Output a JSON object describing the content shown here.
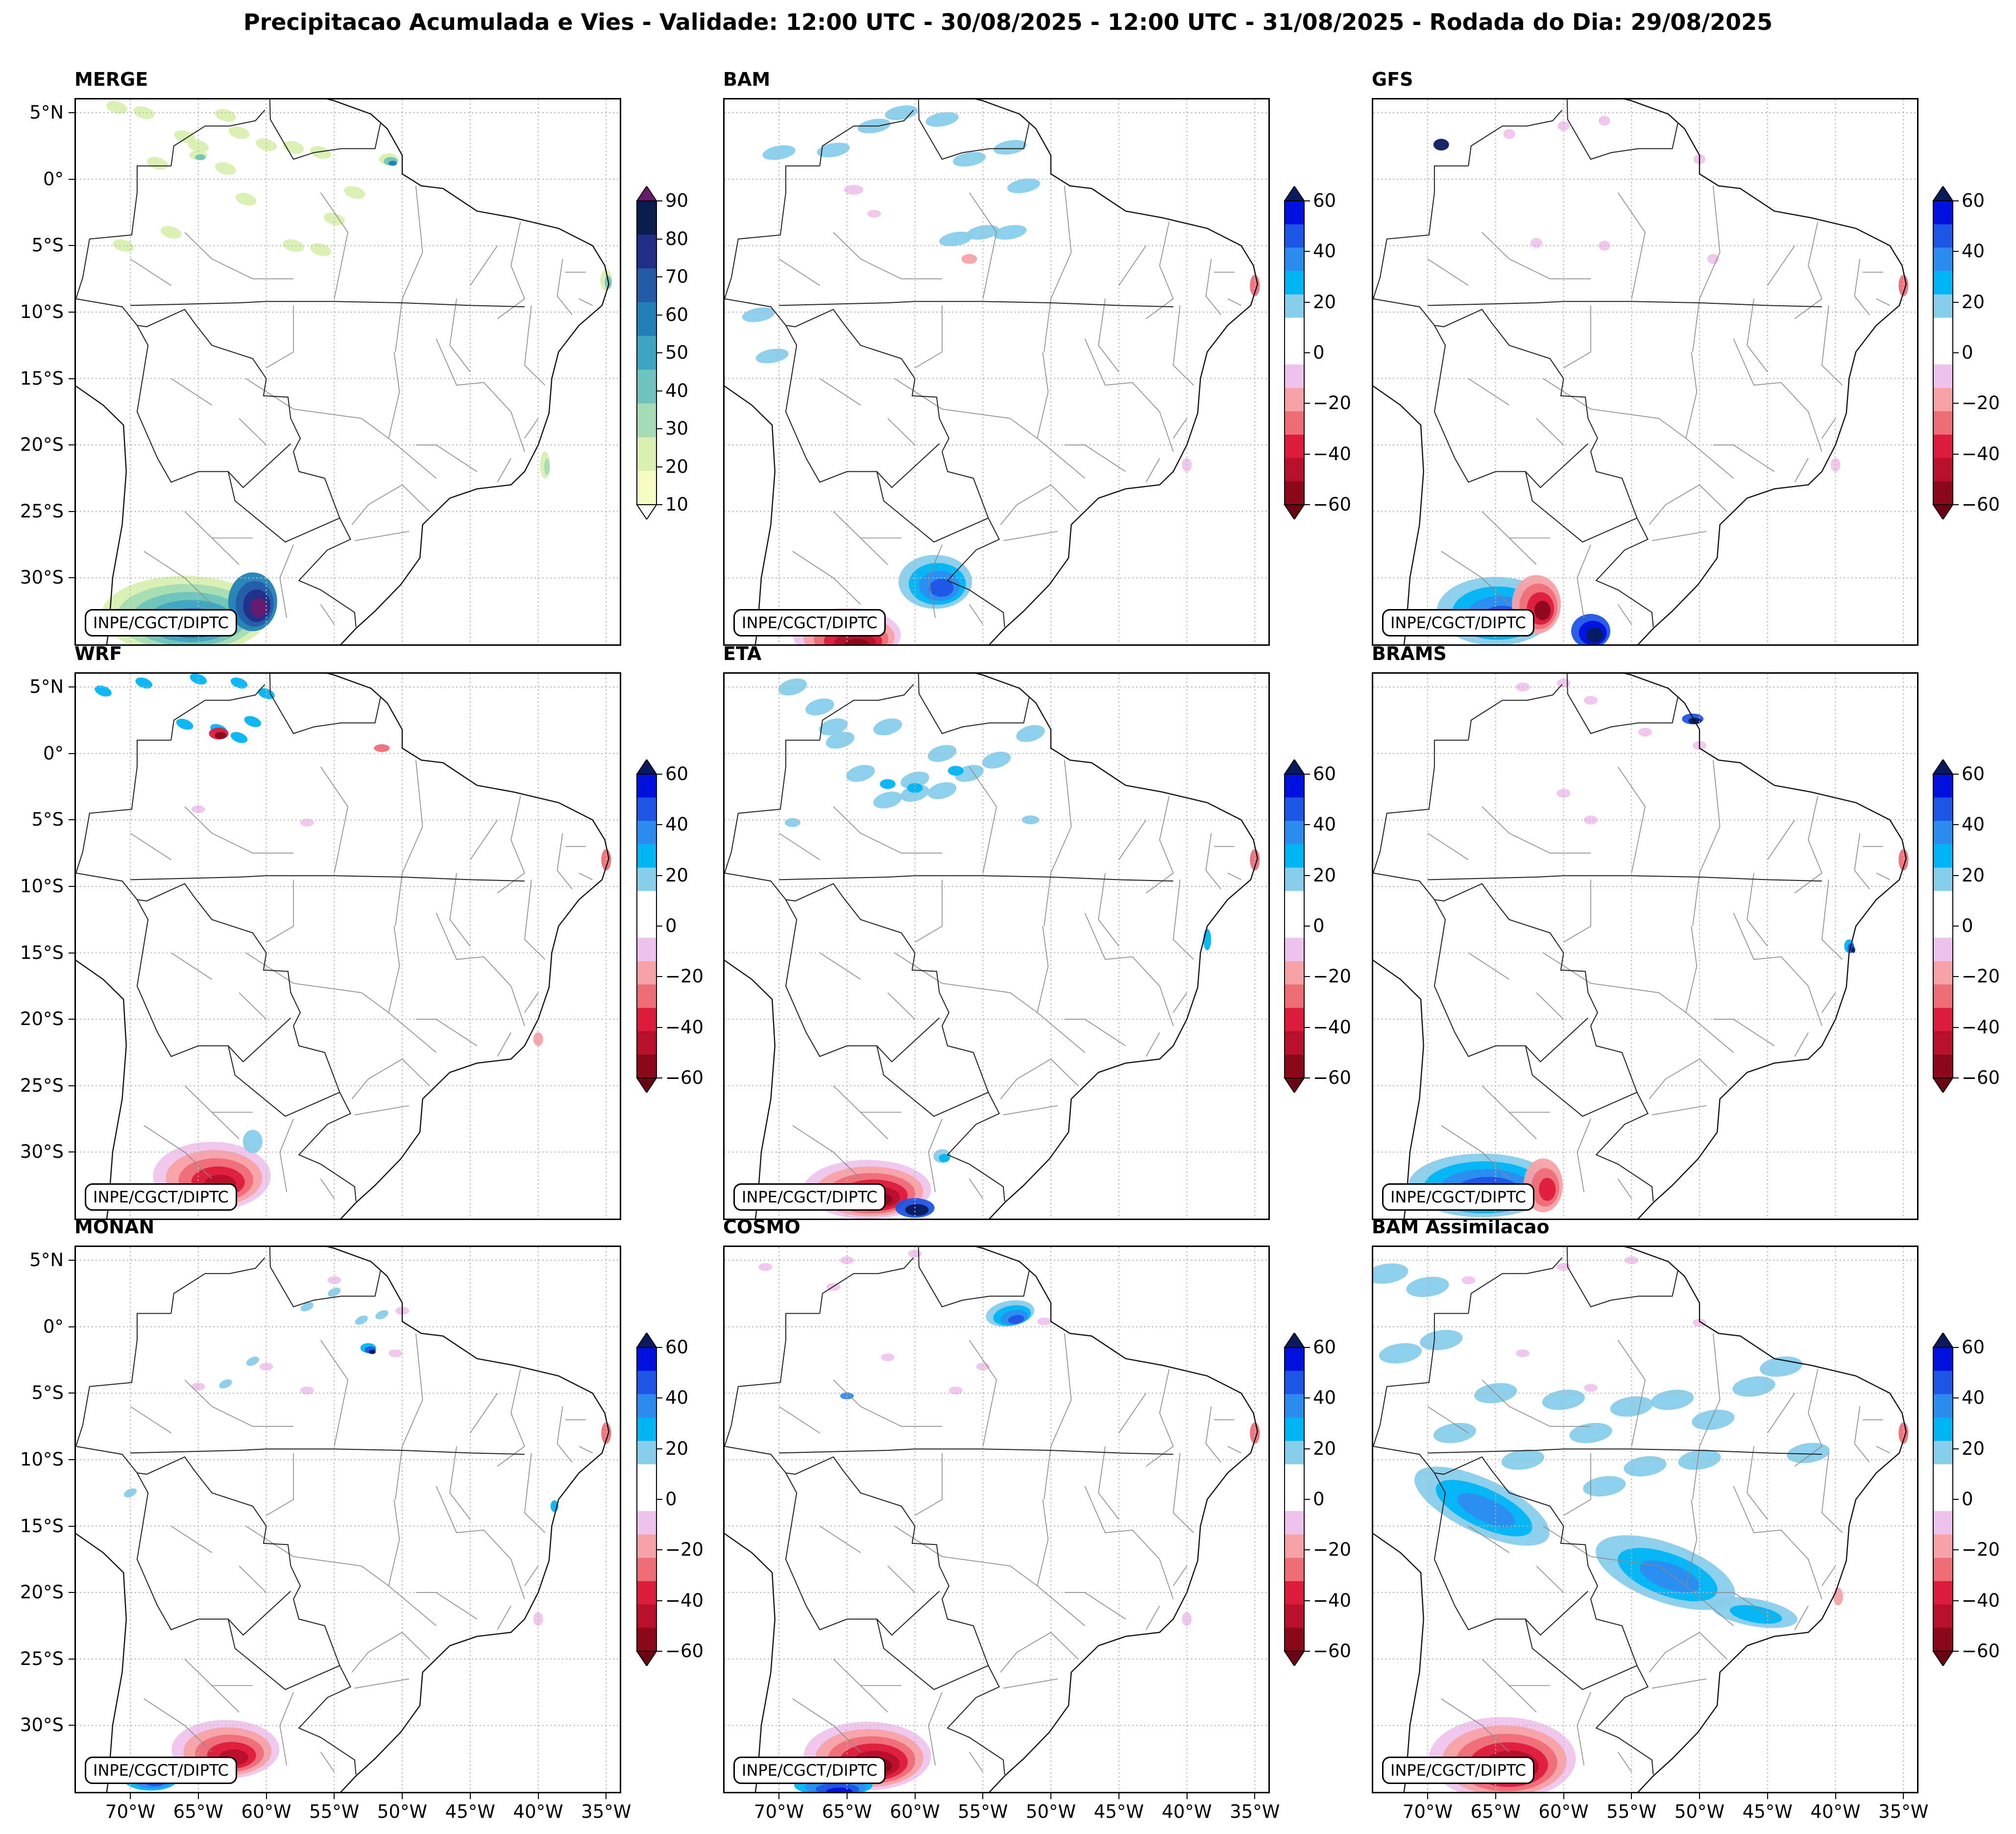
{
  "title": "Precipitacao Acumulada e Vies - Validade: 12:00 UTC - 30/08/2025 - 12:00 UTC - 31/08/2025 - Rodada do Dia: 29/08/2025",
  "credit_label": "INPE/CGCT/DIPTC",
  "latitude_labels": [
    "5°N",
    "0°",
    "5°S",
    "10°S",
    "15°S",
    "20°S",
    "25°S",
    "30°S"
  ],
  "longitude_labels": [
    "70°W",
    "65°W",
    "60°W",
    "55°W",
    "50°W",
    "45°W",
    "40°W",
    "35°W"
  ],
  "precip_colorbar": {
    "ticks": [
      "10",
      "20",
      "30",
      "40",
      "50",
      "60",
      "70",
      "80",
      "90"
    ],
    "colors": [
      "#f7fcc4",
      "#d8efb1",
      "#a6dcb5",
      "#6ec4bc",
      "#3ea5c2",
      "#2181b7",
      "#245ba6",
      "#222e87",
      "#0b1d4d"
    ],
    "extend_top_color": "#6a1a6e"
  },
  "bias_colorbar": {
    "ticks": [
      "60",
      "40",
      "20",
      "0",
      "−20",
      "−40",
      "−60"
    ],
    "colors": [
      "#0011dd",
      "#1f55e6",
      "#2e8cf0",
      "#00b4f4",
      "#88ceea",
      "#ffffff",
      "#ffffff",
      "#efc4ec",
      "#f7a2a8",
      "#ee6e78",
      "#dd1b3c",
      "#b8102c",
      "#8a0a1c"
    ],
    "extend_top_color": "#091a5e",
    "extend_bottom_color": "#6b0514"
  },
  "panels": [
    {
      "id": "merge",
      "label": "MERGE",
      "kind": "precip"
    },
    {
      "id": "bam",
      "label": "BAM",
      "kind": "bias"
    },
    {
      "id": "gfs",
      "label": "GFS",
      "kind": "bias"
    },
    {
      "id": "wrf",
      "label": "WRF",
      "kind": "bias"
    },
    {
      "id": "eta",
      "label": "ETA",
      "kind": "bias"
    },
    {
      "id": "brams",
      "label": "BRAMS",
      "kind": "bias"
    },
    {
      "id": "monan",
      "label": "MONAN",
      "kind": "bias"
    },
    {
      "id": "cosmo",
      "label": "COSMO",
      "kind": "bias"
    },
    {
      "id": "bam-assimilacao",
      "label": "BAM Assimilacao",
      "kind": "bias"
    }
  ]
}
